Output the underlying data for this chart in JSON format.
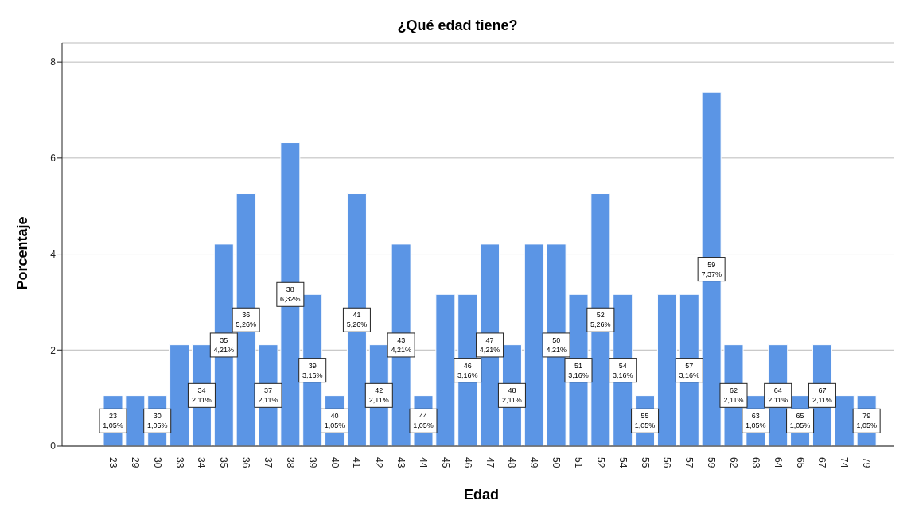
{
  "chart_data": {
    "type": "bar",
    "title": "¿Qué edad tiene?",
    "xlabel": "Edad",
    "ylabel": "Porcentaje",
    "categories": [
      "23",
      "29",
      "30",
      "33",
      "34",
      "35",
      "36",
      "37",
      "38",
      "39",
      "40",
      "41",
      "42",
      "43",
      "44",
      "45",
      "46",
      "47",
      "48",
      "49",
      "50",
      "51",
      "52",
      "54",
      "55",
      "56",
      "57",
      "59",
      "62",
      "63",
      "64",
      "65",
      "67",
      "74",
      "79"
    ],
    "values": [
      1.05,
      1.05,
      1.05,
      2.11,
      2.11,
      4.21,
      5.26,
      2.11,
      6.32,
      3.16,
      1.05,
      5.26,
      2.11,
      4.21,
      1.05,
      3.16,
      3.16,
      4.21,
      2.11,
      4.21,
      4.21,
      3.16,
      5.26,
      3.16,
      1.05,
      3.16,
      3.16,
      7.37,
      2.11,
      1.05,
      2.11,
      1.05,
      2.11,
      1.05,
      1.05
    ],
    "value_labels": [
      "1,05%",
      null,
      "1,05%",
      null,
      "2,11%",
      "4,21%",
      "5,26%",
      "2,11%",
      "6,32%",
      "3,16%",
      "1,05%",
      "5,26%",
      "2,11%",
      "4,21%",
      "1,05%",
      null,
      "3,16%",
      "4,21%",
      "2,11%",
      null,
      "4,21%",
      "3,16%",
      "5,26%",
      "3,16%",
      "1,05%",
      null,
      "3,16%",
      "7,37%",
      "2,11%",
      "1,05%",
      "2,11%",
      "1,05%",
      "2,11%",
      null,
      "1,05%"
    ],
    "color": "#5b95e5",
    "ylim": [
      0,
      8.4
    ],
    "yticks": [
      0,
      2,
      4,
      6,
      8
    ],
    "grid": "y"
  }
}
